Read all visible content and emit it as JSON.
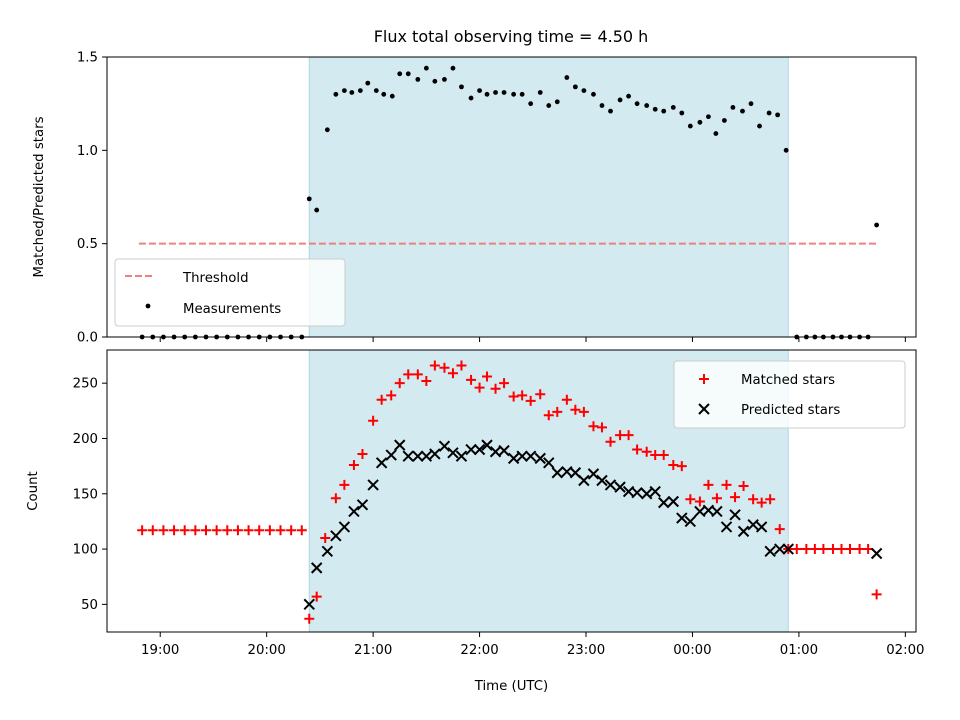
{
  "chart_data": {
    "type": "scatter",
    "title": "Flux total observing time = 4.50 h",
    "xlabel": "Time (UTC)",
    "x_ticks": [
      "19:00",
      "20:00",
      "21:00",
      "22:00",
      "23:00",
      "00:00",
      "01:00",
      "02:00"
    ],
    "x_tick_hours": [
      19,
      20,
      21,
      22,
      23,
      24,
      25,
      26
    ],
    "xlim_hours": [
      18.5,
      26.1
    ],
    "shaded_window_hours": [
      20.4,
      24.9
    ],
    "shade_color": "#d3eaf0",
    "panels": [
      {
        "ylabel": "Matched/Predicted stars",
        "ylim": [
          0,
          1.5
        ],
        "y_ticks": [
          0.0,
          0.5,
          1.0,
          1.5
        ],
        "y_tick_labels": [
          "0.0",
          "0.5",
          "1.0",
          "1.5"
        ],
        "legend_position": "lower-left",
        "threshold": {
          "name": "Threshold",
          "value": 0.5,
          "x_range": [
            18.8,
            25.75
          ],
          "color": "#f08080",
          "style": "dashed"
        },
        "series": [
          {
            "name": "Measurements",
            "marker": "dot",
            "color": "#000000",
            "x": [
              18.83,
              18.93,
              19.03,
              19.13,
              19.23,
              19.33,
              19.43,
              19.53,
              19.63,
              19.73,
              19.83,
              19.93,
              20.03,
              20.13,
              20.23,
              20.33,
              20.4,
              20.47,
              20.57,
              20.65,
              20.73,
              20.8,
              20.88,
              20.95,
              21.03,
              21.1,
              21.18,
              21.25,
              21.33,
              21.42,
              21.5,
              21.58,
              21.67,
              21.75,
              21.83,
              21.92,
              22.0,
              22.07,
              22.15,
              22.23,
              22.32,
              22.4,
              22.48,
              22.57,
              22.65,
              22.73,
              22.82,
              22.9,
              22.98,
              23.07,
              23.15,
              23.23,
              23.32,
              23.4,
              23.48,
              23.57,
              23.65,
              23.73,
              23.82,
              23.9,
              23.98,
              24.07,
              24.15,
              24.22,
              24.3,
              24.38,
              24.47,
              24.55,
              24.63,
              24.72,
              24.8,
              24.88,
              24.98,
              25.07,
              25.15,
              25.23,
              25.32,
              25.4,
              25.48,
              25.57,
              25.65,
              25.73
            ],
            "y": [
              0,
              0,
              0,
              0,
              0,
              0,
              0,
              0,
              0,
              0,
              0,
              0,
              0,
              0,
              0,
              0,
              0.74,
              0.68,
              1.11,
              1.3,
              1.32,
              1.31,
              1.32,
              1.36,
              1.32,
              1.3,
              1.29,
              1.41,
              1.41,
              1.38,
              1.44,
              1.37,
              1.38,
              1.44,
              1.34,
              1.28,
              1.32,
              1.3,
              1.31,
              1.31,
              1.3,
              1.3,
              1.25,
              1.31,
              1.24,
              1.26,
              1.39,
              1.34,
              1.32,
              1.3,
              1.24,
              1.21,
              1.27,
              1.29,
              1.25,
              1.24,
              1.22,
              1.21,
              1.23,
              1.2,
              1.13,
              1.15,
              1.18,
              1.09,
              1.16,
              1.23,
              1.21,
              1.25,
              1.13,
              1.2,
              1.19,
              1.0,
              0,
              0,
              0,
              0,
              0,
              0,
              0,
              0,
              0,
              0.6
            ]
          }
        ]
      },
      {
        "ylabel": "Count",
        "ylim": [
          25,
          280
        ],
        "y_ticks": [
          50,
          100,
          150,
          200,
          250
        ],
        "y_tick_labels": [
          "50",
          "100",
          "150",
          "200",
          "250"
        ],
        "legend_position": "upper-right",
        "series": [
          {
            "name": "Matched stars",
            "marker": "plus",
            "color": "#ff0000",
            "x": [
              18.83,
              18.93,
              19.03,
              19.13,
              19.23,
              19.33,
              19.43,
              19.53,
              19.63,
              19.73,
              19.83,
              19.93,
              20.03,
              20.13,
              20.23,
              20.33,
              20.4,
              20.47,
              20.55,
              20.65,
              20.73,
              20.82,
              20.9,
              21.0,
              21.08,
              21.17,
              21.25,
              21.33,
              21.42,
              21.5,
              21.58,
              21.67,
              21.75,
              21.83,
              21.92,
              22.0,
              22.07,
              22.15,
              22.23,
              22.32,
              22.4,
              22.48,
              22.57,
              22.65,
              22.73,
              22.82,
              22.9,
              22.98,
              23.07,
              23.15,
              23.23,
              23.32,
              23.4,
              23.48,
              23.57,
              23.65,
              23.73,
              23.82,
              23.9,
              23.98,
              24.07,
              24.15,
              24.23,
              24.32,
              24.4,
              24.48,
              24.57,
              24.65,
              24.73,
              24.82,
              24.9,
              24.98,
              25.07,
              25.15,
              25.23,
              25.32,
              25.4,
              25.48,
              25.57,
              25.65,
              25.73
            ],
            "y": [
              117,
              117,
              117,
              117,
              117,
              117,
              117,
              117,
              117,
              117,
              117,
              117,
              117,
              117,
              117,
              117,
              37,
              57,
              110,
              146,
              158,
              176,
              186,
              216,
              235,
              239,
              250,
              258,
              258,
              252,
              266,
              264,
              259,
              266,
              253,
              246,
              256,
              245,
              250,
              238,
              239,
              234,
              240,
              221,
              224,
              235,
              226,
              224,
              211,
              210,
              197,
              203,
              203,
              190,
              188,
              185,
              185,
              176,
              175,
              145,
              143,
              158,
              146,
              158,
              147,
              157,
              145,
              142,
              145,
              118,
              100,
              100,
              100,
              100,
              100,
              100,
              100,
              100,
              100,
              100,
              59
            ]
          },
          {
            "name": "Predicted stars",
            "marker": "x",
            "color": "#000000",
            "x": [
              20.4,
              20.47,
              20.57,
              20.65,
              20.73,
              20.82,
              20.9,
              21.0,
              21.08,
              21.17,
              21.25,
              21.33,
              21.42,
              21.5,
              21.58,
              21.67,
              21.75,
              21.83,
              21.92,
              22.0,
              22.07,
              22.15,
              22.23,
              22.32,
              22.4,
              22.48,
              22.57,
              22.65,
              22.73,
              22.82,
              22.9,
              22.98,
              23.07,
              23.15,
              23.23,
              23.32,
              23.4,
              23.48,
              23.57,
              23.65,
              23.73,
              23.82,
              23.9,
              23.98,
              24.07,
              24.15,
              24.23,
              24.32,
              24.4,
              24.48,
              24.57,
              24.65,
              24.73,
              24.82,
              24.9,
              25.73
            ],
            "y": [
              50,
              83,
              98,
              112,
              120,
              134,
              140,
              158,
              178,
              185,
              194,
              184,
              184,
              184,
              186,
              193,
              187,
              184,
              190,
              190,
              194,
              188,
              189,
              182,
              184,
              184,
              182,
              178,
              169,
              170,
              169,
              162,
              168,
              162,
              158,
              156,
              152,
              151,
              150,
              152,
              142,
              143,
              128,
              125,
              134,
              135,
              134,
              120,
              131,
              116,
              122,
              120,
              98,
              100,
              100,
              96
            ]
          }
        ]
      }
    ]
  }
}
